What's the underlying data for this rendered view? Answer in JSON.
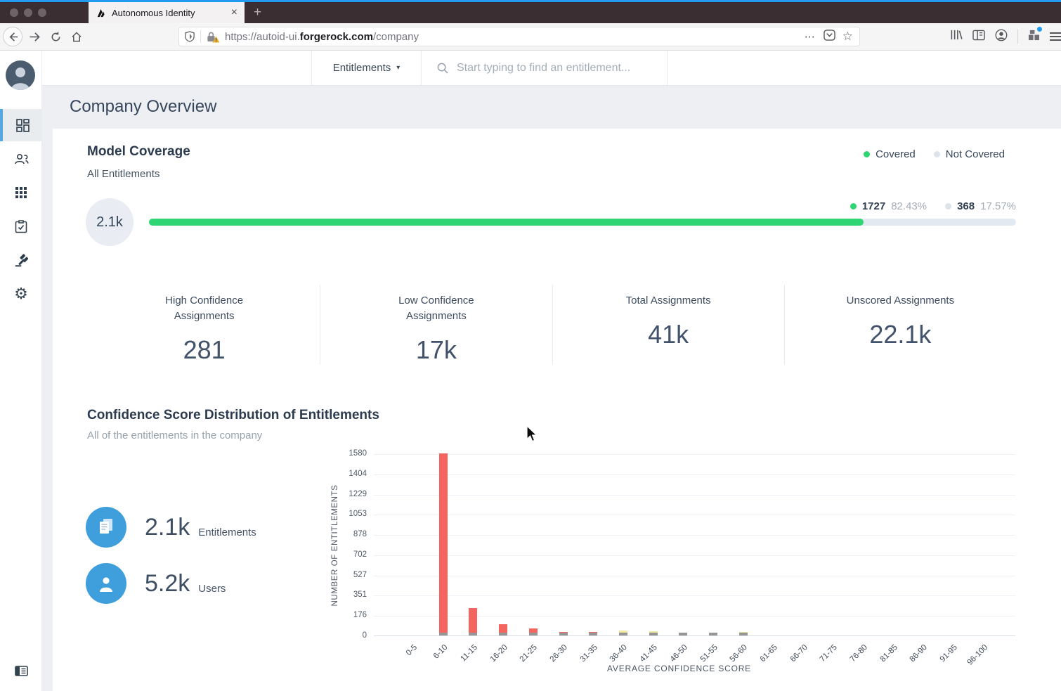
{
  "browser": {
    "tab_title": "Autonomous Identity",
    "url": {
      "scheme": "https://",
      "host_prefix": "autoid-ui.",
      "host": "forgerock.com",
      "path": "/company"
    },
    "glyphs": {
      "new_tab": "+",
      "close_tab": "×",
      "page_actions": "⋯",
      "bookmark_star": "☆"
    }
  },
  "topbar": {
    "entity_selector": "Entitlements",
    "caret": "▾",
    "search_placeholder": "Start typing to find an entitlement..."
  },
  "sidebar": {
    "gear_glyph": "⚙"
  },
  "page": {
    "title": "Company Overview"
  },
  "model_coverage": {
    "title": "Model Coverage",
    "subtitle": "All Entitlements",
    "legend": [
      {
        "label": "Covered",
        "color": "#2ed573"
      },
      {
        "label": "Not Covered",
        "color": "#dce3ea"
      }
    ],
    "total_badge": "2.1k",
    "covered": {
      "count": "1727",
      "pct": "82.43%"
    },
    "not_covered": {
      "count": "368",
      "pct": "17.57%"
    },
    "progress_pct": 82.43
  },
  "stats": [
    {
      "label": "High Confidence Assignments",
      "value": "281"
    },
    {
      "label": "Low Confidence Assignments",
      "value": "17k"
    },
    {
      "label": "Total Assignments",
      "value": "41k"
    },
    {
      "label": "Unscored Assignments",
      "value": "22.1k"
    }
  ],
  "distribution": {
    "title": "Confidence Score Distribution of Entitlements",
    "subtitle": "All of the entitlements in the company",
    "metrics": [
      {
        "value": "2.1k",
        "label": "Entitlements",
        "icon": "documents-icon"
      },
      {
        "value": "5.2k",
        "label": "Users",
        "icon": "user-icon"
      }
    ]
  },
  "chart_data": {
    "type": "bar",
    "title": "Confidence Score Distribution of Entitlements",
    "xlabel": "AVERAGE CONFIDENCE SCORE",
    "ylabel": "NUMBER OF ENTITLEMENTS",
    "categories": [
      "0-5",
      "6-10",
      "11-15",
      "16-20",
      "21-25",
      "26-30",
      "31-35",
      "36-40",
      "41-45",
      "46-50",
      "51-55",
      "56-60",
      "61-65",
      "66-70",
      "71-75",
      "76-80",
      "81-85",
      "86-90",
      "91-95",
      "96-100"
    ],
    "values": [
      0,
      1580,
      240,
      95,
      62,
      28,
      28,
      40,
      36,
      24,
      24,
      28,
      0,
      0,
      0,
      0,
      0,
      0,
      0,
      0
    ],
    "bar_colors": [
      "#f4655f",
      "#f4655f",
      "#f4655f",
      "#f4655f",
      "#f4655f",
      "#f4655f",
      "#f4655f",
      "#f0e9a0",
      "#f0e9a0",
      "#f0e9a0",
      "#f0e9a0",
      "#f0e9a0",
      "#f0e9a0",
      "#f0e9a0",
      "#f0e9a0",
      "#f0e9a0",
      "#f0e9a0",
      "#f0e9a0",
      "#f0e9a0",
      "#f0e9a0"
    ],
    "base_color": "#969696",
    "yticks": [
      0,
      176,
      351,
      527,
      702,
      878,
      1053,
      1229,
      1404,
      1580
    ],
    "ylim": [
      0,
      1580
    ],
    "grid": true,
    "legend_position": "none"
  }
}
